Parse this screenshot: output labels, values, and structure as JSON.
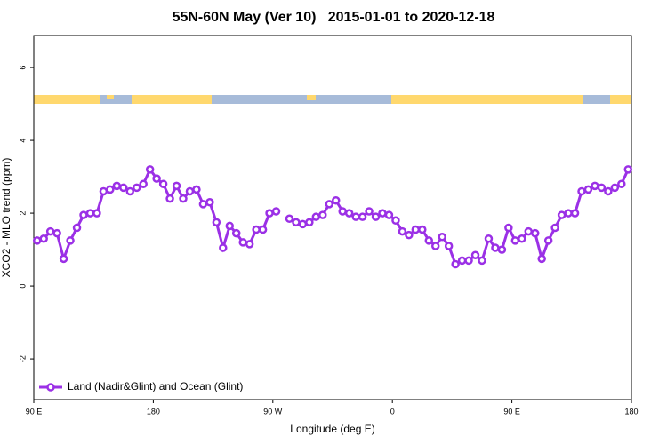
{
  "chart_data": {
    "type": "line",
    "title": "55N-60N May (Ver 10)   2015-01-01 to 2020-12-18",
    "xlabel": "Longitude (deg E)",
    "ylabel": "XCO2 - MLO trend (ppm)",
    "xlim": [
      90,
      540
    ],
    "ylim": [
      -3.12,
      6.88
    ],
    "xticks": [
      {
        "value": 90,
        "label": "90 E"
      },
      {
        "value": 180,
        "label": "180"
      },
      {
        "value": 270,
        "label": "90 W"
      },
      {
        "value": 360,
        "label": "0"
      },
      {
        "value": 450,
        "label": "90 E"
      },
      {
        "value": 540,
        "label": "180"
      }
    ],
    "yticks": [
      -2,
      0,
      2,
      4,
      6
    ],
    "legend": "lower left",
    "x": [
      92.5,
      97.5,
      102.5,
      107.5,
      112.5,
      117.5,
      122.5,
      127.5,
      132.5,
      137.5,
      142.5,
      147.5,
      152.5,
      157.5,
      162.5,
      167.5,
      172.5,
      177.5,
      182.5,
      187.5,
      192.5,
      197.5,
      202.5,
      207.5,
      212.5,
      217.5,
      222.5,
      227.5,
      232.5,
      237.5,
      242.5,
      247.5,
      252.5,
      257.5,
      262.5,
      267.5,
      272.5,
      277.5,
      282.5,
      287.5,
      292.5,
      297.5,
      302.5,
      307.5,
      312.5,
      317.5,
      322.5,
      327.5,
      332.5,
      337.5,
      342.5,
      347.5,
      352.5,
      357.5,
      362.5,
      367.5,
      372.5,
      377.5,
      382.5,
      387.5,
      392.5,
      397.5,
      402.5,
      407.5,
      412.5,
      417.5,
      422.5,
      427.5,
      432.5,
      437.5,
      442.5,
      447.5,
      452.5,
      457.5,
      462.5,
      467.5,
      472.5,
      477.5,
      482.5,
      487.5,
      492.5,
      497.5,
      502.5,
      507.5,
      512.5,
      517.5,
      522.5,
      527.5,
      532.5,
      537.5
    ],
    "series": [
      {
        "name": "Land (Nadir&Glint) and Ocean (Glint)",
        "color": "#9b30e6",
        "values": [
          1.25,
          1.3,
          1.5,
          1.45,
          0.75,
          1.25,
          1.6,
          1.95,
          2.0,
          2.0,
          2.6,
          2.65,
          2.75,
          2.7,
          2.6,
          2.7,
          2.8,
          3.2,
          2.95,
          2.8,
          2.4,
          2.75,
          2.4,
          2.6,
          2.65,
          2.25,
          2.3,
          1.75,
          1.05,
          1.65,
          1.45,
          1.2,
          1.15,
          1.55,
          1.55,
          2.0,
          2.05,
          null,
          1.85,
          1.75,
          1.7,
          1.75,
          1.9,
          1.95,
          2.25,
          2.35,
          2.05,
          2.0,
          1.9,
          1.9,
          2.05,
          1.9,
          2.0,
          1.95,
          1.8,
          1.5,
          1.4,
          1.55,
          1.55,
          1.25,
          1.1,
          1.35,
          1.1,
          0.6,
          0.7,
          0.7,
          0.85,
          0.7,
          1.3,
          1.05,
          1.0,
          1.6,
          1.25,
          1.3,
          1.5,
          1.45,
          0.75,
          1.25,
          1.6,
          1.95,
          2.0,
          2.0,
          2.6,
          2.65,
          2.75,
          2.7,
          2.6,
          2.7,
          2.8,
          3.2
        ]
      }
    ]
  }
}
